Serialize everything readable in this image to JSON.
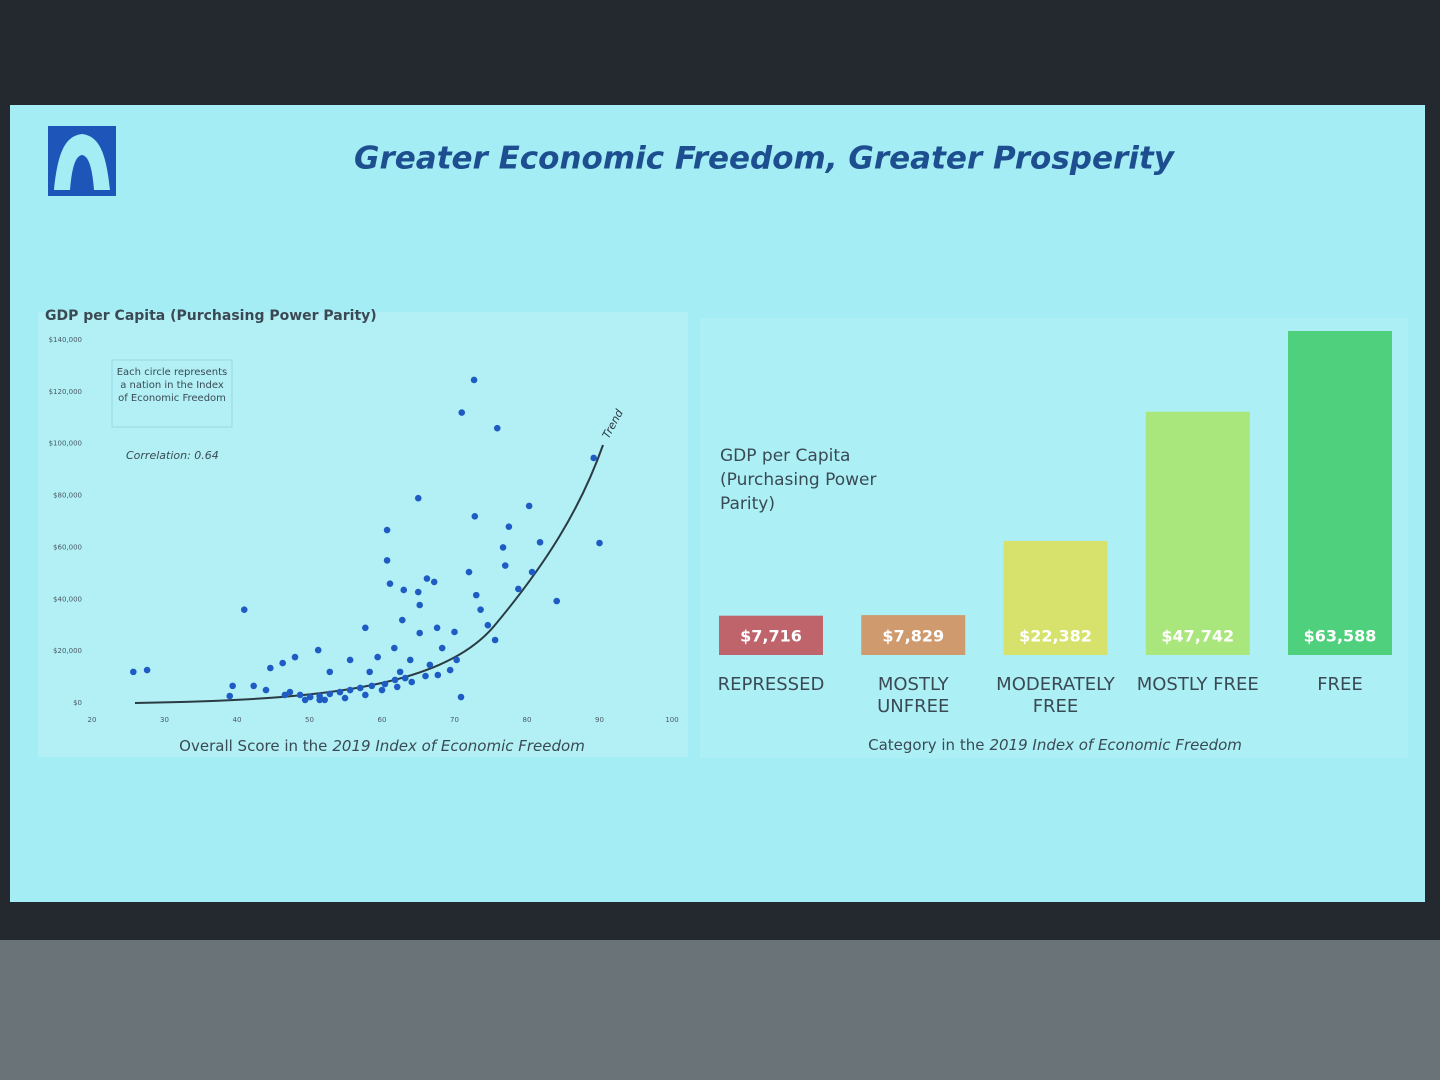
{
  "title": "Greater Economic Freedom, Greater Prosperity",
  "chart_data": [
    {
      "type": "scatter",
      "title": "GDP per Capita (Purchasing Power Parity)",
      "xlabel": "Overall Score in the",
      "xlabel_italic": "2019 Index of Economic Freedom",
      "note": "Each circle represents a nation in the Index of Economic Freedom",
      "annotation": "Correlation: 0.64",
      "trend_label": "Trend",
      "color": "#1e5cc4",
      "x": [
        25.7,
        27.6,
        41,
        72.7,
        71,
        75.9,
        89.2,
        90,
        65,
        72.8,
        80.3,
        60.7,
        77.5,
        76.7,
        81.8,
        60.7,
        72,
        77,
        80.7,
        84.1,
        78.8,
        66.2,
        67.2,
        61.1,
        63,
        65,
        73,
        73.6,
        65.2,
        62.8,
        67.6,
        70,
        74.6,
        57.7,
        65.2,
        75.6,
        68.3,
        61.7,
        51.2,
        48,
        46.3,
        55.6,
        59.4,
        63.9,
        66.6,
        70.3,
        67.7,
        62.5,
        58.3,
        52.8,
        44.6,
        39.4,
        42.3,
        44,
        47.3,
        48.7,
        50.1,
        51.4,
        52.8,
        54.2,
        55.6,
        57,
        58.6,
        60.4,
        61.8,
        63.2,
        70.9,
        39,
        46.6,
        49.4,
        52.1,
        54.9,
        57.7,
        60,
        62.1,
        64.1,
        66,
        69.4,
        51.4
      ],
      "values": [
        12000,
        12700,
        36000,
        124600,
        112000,
        106000,
        94500,
        61700,
        79000,
        72000,
        76000,
        66700,
        68000,
        60000,
        62000,
        55000,
        50500,
        53000,
        50500,
        39300,
        44000,
        48000,
        46700,
        46000,
        43600,
        42800,
        41600,
        36000,
        37800,
        32000,
        29000,
        27400,
        30000,
        29000,
        27000,
        24300,
        21200,
        21200,
        20400,
        17700,
        15400,
        16600,
        17700,
        16600,
        14700,
        16600,
        10800,
        12000,
        12000,
        12000,
        13500,
        6600,
        6600,
        5000,
        4200,
        3100,
        2300,
        2700,
        3500,
        4200,
        5000,
        5800,
        6600,
        7300,
        8900,
        9600,
        2300,
        2700,
        3100,
        1200,
        1200,
        1900,
        3100,
        5000,
        6200,
        8100,
        10400,
        12700,
        1200
      ],
      "xlim": [
        20,
        100
      ],
      "xticks": [
        20,
        30,
        40,
        50,
        60,
        70,
        80,
        90,
        100
      ],
      "ylim": [
        0,
        140000
      ],
      "yticks": [
        {
          "value": 0,
          "label": "$0"
        },
        {
          "value": 20000,
          "label": "$20,000"
        },
        {
          "value": 40000,
          "label": "$40,000"
        },
        {
          "value": 60000,
          "label": "$60,000"
        },
        {
          "value": 80000,
          "label": "$80,000"
        },
        {
          "value": 100000,
          "label": "$100,000"
        },
        {
          "value": 120000,
          "label": "$120,000"
        },
        {
          "value": 140000,
          "label": "$140,000"
        }
      ]
    },
    {
      "type": "bar",
      "title": "GDP per Capita (Purchasing Power Parity)",
      "xlabel": "Category in the",
      "xlabel_italic": "2019 Index of Economic Freedom",
      "categories": [
        "REPRESSED",
        "MOSTLY UNFREE",
        "MODERATELY FREE",
        "MOSTLY FREE",
        "FREE"
      ],
      "values": [
        7716,
        7829,
        22382,
        47742,
        63588
      ],
      "value_labels": [
        "$7,716",
        "$7,829",
        "$22,382",
        "$47,742",
        "$63,588"
      ],
      "colors": [
        "#c0646c",
        "#cf9a6e",
        "#d6e26c",
        "#a9e67c",
        "#4fd07c"
      ]
    }
  ]
}
